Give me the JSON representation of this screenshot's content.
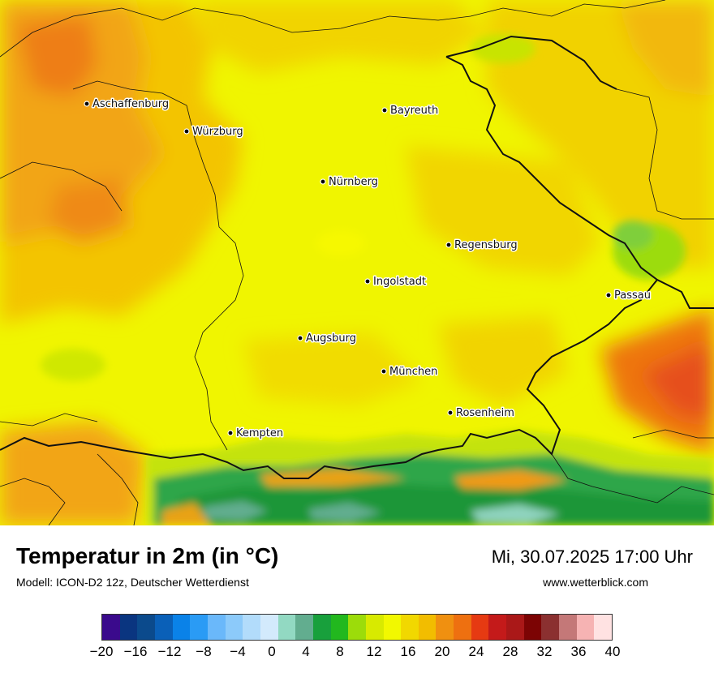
{
  "title": "Temperatur in 2m (in °C)",
  "model": "Modell: ICON-D2 12z, Deutscher Wetterdienst",
  "datetime": "Mi, 30.07.2025 17:00 Uhr",
  "website": "www.wetterblick.com",
  "cities": [
    {
      "name": "Aschaffenburg",
      "marker": "city-dot-icon"
    },
    {
      "name": "Würzburg",
      "marker": "city-dot-icon"
    },
    {
      "name": "Bayreuth",
      "marker": "city-dot-icon"
    },
    {
      "name": "Nürnberg",
      "marker": "city-dot-icon"
    },
    {
      "name": "Regensburg",
      "marker": "city-dot-icon"
    },
    {
      "name": "Ingolstadt",
      "marker": "city-dot-icon"
    },
    {
      "name": "Passau",
      "marker": "city-dot-icon"
    },
    {
      "name": "Augsburg",
      "marker": "city-dot-icon"
    },
    {
      "name": "München",
      "marker": "city-dot-icon"
    },
    {
      "name": "Rosenheim",
      "marker": "city-dot-icon"
    },
    {
      "name": "Kempten",
      "marker": "city-dot-icon"
    }
  ],
  "colorbar": {
    "tick_labels": [
      "−20",
      "−16",
      "−12",
      "−8",
      "−4",
      "0",
      "4",
      "8",
      "12",
      "16",
      "20",
      "24",
      "28",
      "32",
      "36",
      "40"
    ],
    "colors": [
      "#3a0a8c",
      "#0a3580",
      "#0b4a8c",
      "#0a60b8",
      "#0a82e8",
      "#2a9bf5",
      "#6ab8fa",
      "#8ccafa",
      "#b2dcfb",
      "#d3eafc",
      "#92d9c2",
      "#62ad8f",
      "#18a03c",
      "#22b81e",
      "#9cdc0a",
      "#d8ea00",
      "#f2f800",
      "#f1d800",
      "#f2bd00",
      "#f09010",
      "#ee7010",
      "#e63a12",
      "#c41a1a",
      "#aa1818",
      "#7c0404",
      "#8b3030",
      "#c47878",
      "#f6b3b3",
      "#ffe2e2"
    ]
  },
  "colors": {
    "dominant_yellow": "#f0f500",
    "warm_orange": "#f29615",
    "alps_green": "#2ea64a",
    "border_line": "#111111"
  }
}
